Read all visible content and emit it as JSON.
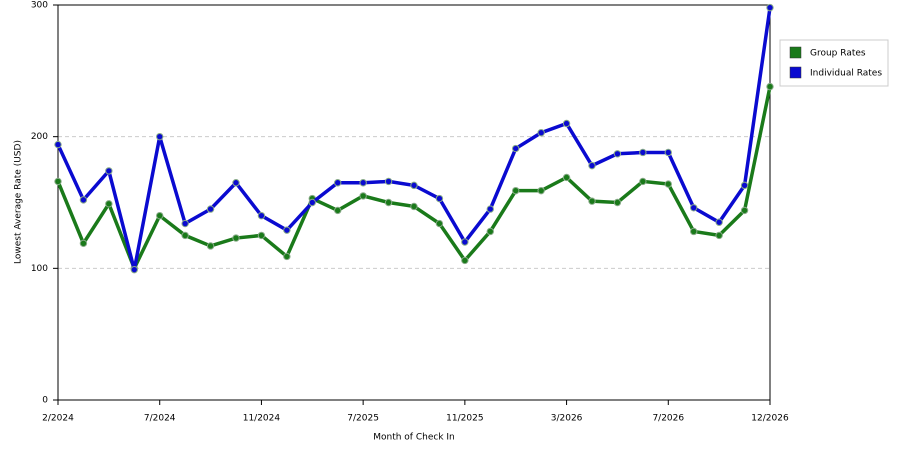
{
  "chart_data": {
    "type": "line",
    "x_label": "Month of Check In",
    "y_label": "Lowest Average Rate (USD)",
    "categories": [
      "2/2024",
      null,
      null,
      null,
      "7/2024",
      null,
      null,
      null,
      "11/2024",
      null,
      null,
      null,
      "7/2025",
      null,
      null,
      null,
      "11/2025",
      null,
      null,
      null,
      "3/2026",
      null,
      null,
      null,
      "7/2026",
      null,
      null,
      null,
      "12/2026"
    ],
    "series": [
      {
        "name": "Group Rates",
        "color": "#1a7a1a",
        "values": [
          166,
          119,
          149,
          100,
          140,
          125,
          117,
          123,
          125,
          109,
          153,
          144,
          155,
          150,
          147,
          134,
          106,
          128,
          159,
          159,
          169,
          151,
          150,
          166,
          164,
          128,
          125,
          144,
          238
        ]
      },
      {
        "name": "Individual Rates",
        "color": "#0a0ad0",
        "values": [
          194,
          152,
          174,
          99,
          200,
          134,
          145,
          165,
          140,
          129,
          150,
          165,
          165,
          166,
          163,
          153,
          120,
          145,
          191,
          203,
          210,
          178,
          187,
          188,
          188,
          146,
          135,
          163,
          298
        ]
      }
    ],
    "ylim": [
      0,
      300
    ],
    "yticks": [
      0,
      100,
      200,
      300
    ],
    "grid": true
  }
}
